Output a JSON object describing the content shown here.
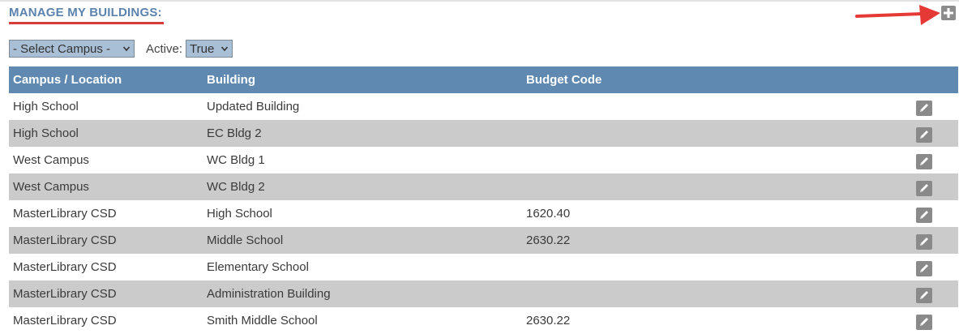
{
  "page": {
    "title": "MANAGE MY BUILDINGS:",
    "add_icon": "plus-icon",
    "annotation_arrow_color": "#e53935"
  },
  "filters": {
    "campus_select": {
      "value": "- Select Campus -"
    },
    "active_label": "Active:",
    "active_select": {
      "value": "True"
    }
  },
  "table": {
    "columns": [
      "Campus / Location",
      "Building",
      "Budget Code",
      ""
    ],
    "rows": [
      {
        "campus": "High School",
        "building": "Updated Building",
        "budget_code": ""
      },
      {
        "campus": "High School",
        "building": "EC Bldg 2",
        "budget_code": ""
      },
      {
        "campus": "West Campus",
        "building": "WC Bldg 1",
        "budget_code": ""
      },
      {
        "campus": "West Campus",
        "building": "WC Bldg 2",
        "budget_code": ""
      },
      {
        "campus": "MasterLibrary CSD",
        "building": "High School",
        "budget_code": "1620.40"
      },
      {
        "campus": "MasterLibrary CSD",
        "building": "Middle School",
        "budget_code": "2630.22"
      },
      {
        "campus": "MasterLibrary CSD",
        "building": "Elementary School",
        "budget_code": ""
      },
      {
        "campus": "MasterLibrary CSD",
        "building": "Administration Building",
        "budget_code": ""
      },
      {
        "campus": "MasterLibrary CSD",
        "building": "Smith Middle School",
        "budget_code": "2630.22"
      }
    ],
    "row_action_icon": "pencil-icon"
  },
  "colors": {
    "header_bg": "#5f89b1",
    "title": "#5b83ad",
    "stripe": "#cbcbcb",
    "select_bg": "#a9bfd5"
  }
}
